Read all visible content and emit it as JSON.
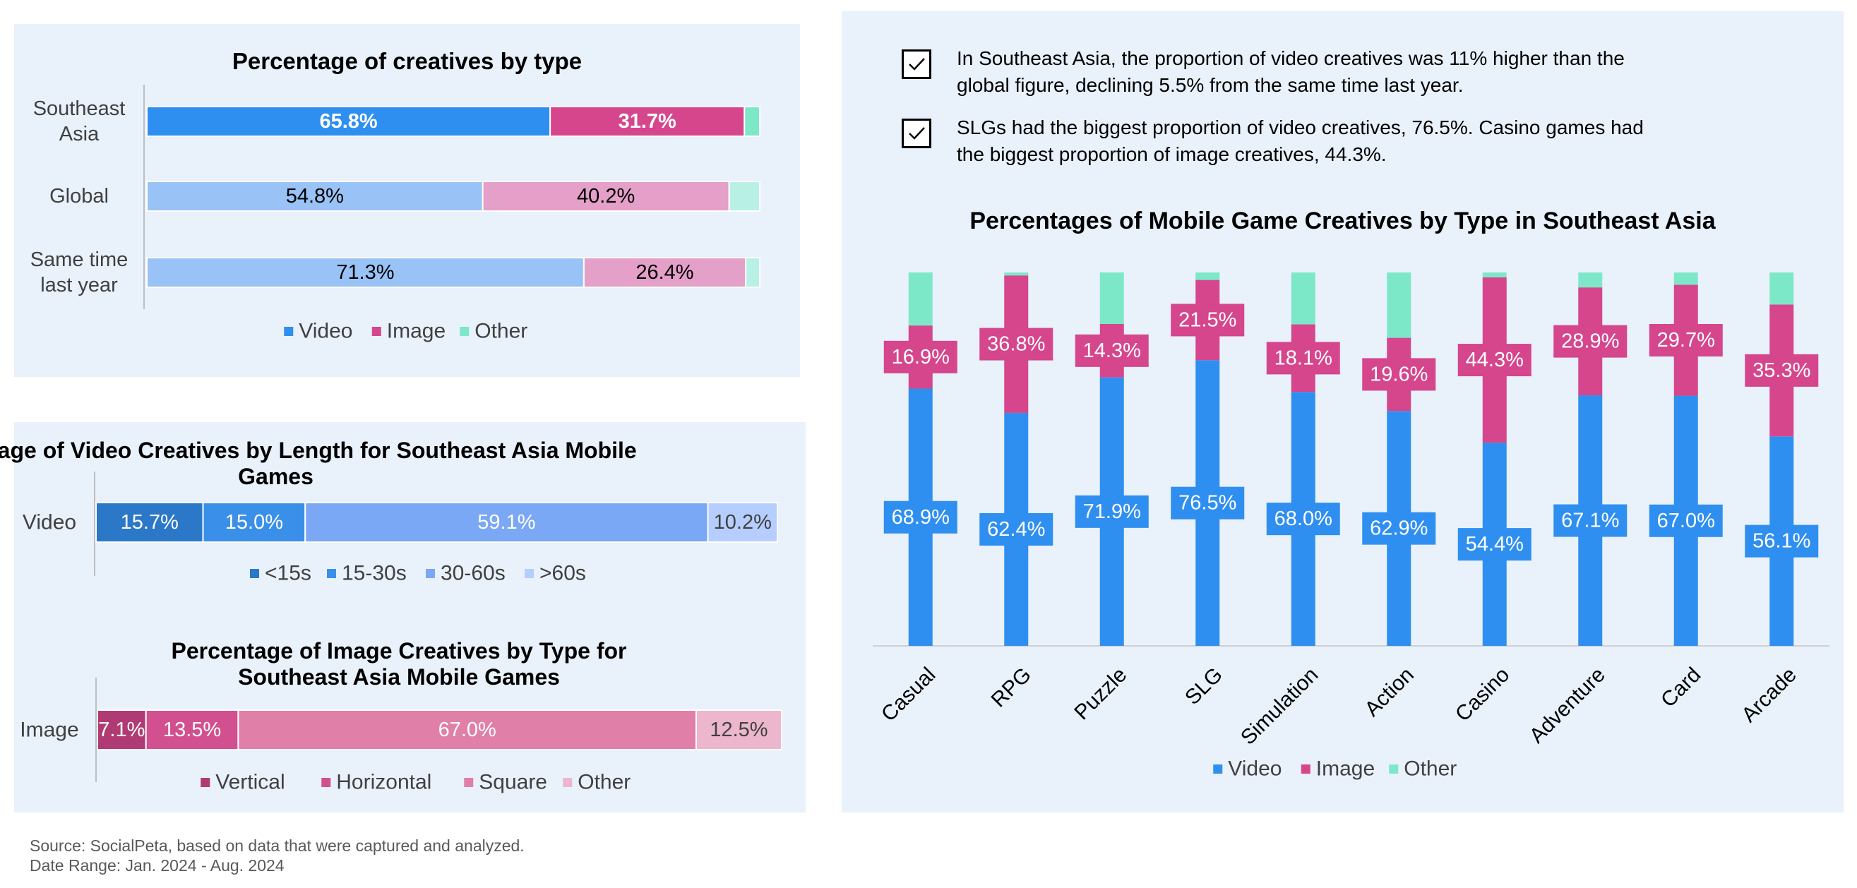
{
  "colors": {
    "video": "#2f8ff0",
    "video_light": "#99c3f6",
    "image": "#d5468c",
    "image_light": "#e4a0c8",
    "other": "#7de8c8",
    "other_light": "#b9f0e5",
    "len_lt15": "#2b78c8",
    "len_15_30": "#3a8fe8",
    "len_30_60": "#7aa8f4",
    "len_gt60": "#b6ceff",
    "img_vertical": "#b03a73",
    "img_horizontal": "#d2508f",
    "img_square": "#e07fa7",
    "img_other": "#ecb6cc"
  },
  "panel1": {
    "legend": [
      "Video",
      "Image",
      "Other"
    ],
    "chart_data": {
      "type": "bar",
      "orientation": "horizontal-stacked",
      "title": "Percentage of creatives by type",
      "categories": [
        "Southeast Asia",
        "Global",
        "Same time last year"
      ],
      "series": [
        {
          "name": "Video",
          "values": [
            65.8,
            54.8,
            71.3
          ]
        },
        {
          "name": "Image",
          "values": [
            31.7,
            40.2,
            26.4
          ]
        },
        {
          "name": "Other",
          "values": [
            2.5,
            5.0,
            2.3
          ]
        }
      ],
      "labels": [
        [
          "65.8%",
          "31.7%",
          ""
        ],
        [
          "54.8%",
          "40.2%",
          ""
        ],
        [
          "71.3%",
          "26.4%",
          ""
        ]
      ],
      "xlim": [
        0,
        100
      ]
    }
  },
  "panel2": {
    "video_legend": [
      "<15s",
      "15-30s",
      "30-60s",
      ">60s"
    ],
    "image_legend": [
      "Vertical",
      "Horizontal",
      "Square",
      "Other"
    ],
    "chart_data": [
      {
        "type": "bar",
        "orientation": "horizontal-stacked",
        "title": "Percentage of Video Creatives by Length for Southeast Asia Mobile Games",
        "categories": [
          "Video"
        ],
        "series": [
          {
            "name": "<15s",
            "values": [
              15.7
            ]
          },
          {
            "name": "15-30s",
            "values": [
              15.0
            ]
          },
          {
            "name": "30-60s",
            "values": [
              59.1
            ]
          },
          {
            "name": ">60s",
            "values": [
              10.2
            ]
          }
        ],
        "labels": [
          "15.7%",
          "15.0%",
          "59.1%",
          "10.2%"
        ],
        "xlim": [
          0,
          100
        ]
      },
      {
        "type": "bar",
        "orientation": "horizontal-stacked",
        "title": "Percentage of Image Creatives by Type for Southeast Asia Mobile Games",
        "categories": [
          "Image"
        ],
        "series": [
          {
            "name": "Vertical",
            "values": [
              7.1
            ]
          },
          {
            "name": "Horizontal",
            "values": [
              13.5
            ]
          },
          {
            "name": "Square",
            "values": [
              67.0
            ]
          },
          {
            "name": "Other",
            "values": [
              12.5
            ]
          }
        ],
        "labels": [
          "7.1%",
          "13.5%",
          "67.0%",
          "12.5%"
        ],
        "xlim": [
          0,
          100
        ]
      }
    ]
  },
  "panel3": {
    "notes": [
      "In Southeast Asia, the proportion of video creatives was 11% higher than the global figure, declining 5.5% from the same time last year.",
      "SLGs had the biggest proportion of video creatives, 76.5%. Casino games had the biggest proportion of image creatives, 44.3%."
    ],
    "legend": [
      "Video",
      "Image",
      "Other"
    ],
    "chart_data": {
      "type": "bar",
      "orientation": "vertical-stacked",
      "title": "Percentages of Mobile Game Creatives by Type in Southeast Asia",
      "categories": [
        "Casual",
        "RPG",
        "Puzzle",
        "SLG",
        "Simulation",
        "Action",
        "Casino",
        "Adventure",
        "Card",
        "Arcade"
      ],
      "series": [
        {
          "name": "Video",
          "values": [
            68.9,
            62.4,
            71.9,
            76.5,
            68.0,
            62.9,
            54.4,
            67.1,
            67.0,
            56.1
          ]
        },
        {
          "name": "Image",
          "values": [
            16.9,
            36.8,
            14.3,
            21.5,
            18.1,
            19.6,
            44.3,
            28.9,
            29.7,
            35.3
          ]
        },
        {
          "name": "Other",
          "values": [
            14.2,
            0.8,
            13.8,
            2.0,
            13.9,
            17.5,
            1.3,
            4.0,
            3.3,
            8.6
          ]
        }
      ],
      "ylim": [
        0,
        100
      ]
    }
  },
  "footer": {
    "source": "Source: SocialPeta, based on data that were captured and analyzed.",
    "date_range": "Date Range: Jan. 2024 - Aug. 2024"
  }
}
